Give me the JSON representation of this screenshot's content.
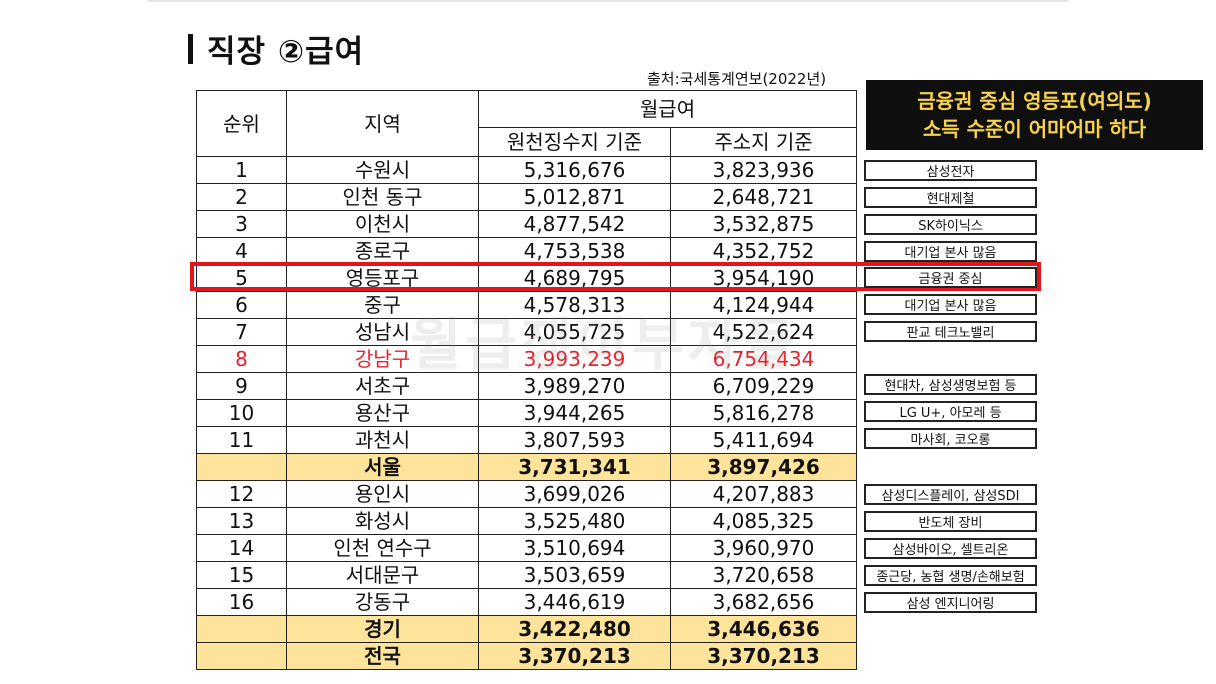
{
  "title": "직장 ②급여",
  "source": "출처:국세통계연보(2022년)",
  "callout": {
    "line1": "금융권 중심 영등포(여의도)",
    "line2": "소득 수준이 어마어마 하다"
  },
  "watermark": "월급쟁이부자들",
  "colors": {
    "highlight_row": "#fde49a",
    "red_row": "#e4222e",
    "highlight_box": "#e4141c",
    "callout_text": "#f7d24a"
  },
  "table": {
    "headers": {
      "rank": "순위",
      "region": "지역",
      "pay": "월급여",
      "withholding": "원천징수지 기준",
      "residence": "주소지 기준"
    },
    "rows": [
      {
        "rank": "1",
        "region": "수원시",
        "withholding": "5,316,676",
        "residence": "3,823,936"
      },
      {
        "rank": "2",
        "region": "인천 동구",
        "withholding": "5,012,871",
        "residence": "2,648,721"
      },
      {
        "rank": "3",
        "region": "이천시",
        "withholding": "4,877,542",
        "residence": "3,532,875"
      },
      {
        "rank": "4",
        "region": "종로구",
        "withholding": "4,753,538",
        "residence": "4,352,752"
      },
      {
        "rank": "5",
        "region": "영등포구",
        "withholding": "4,689,795",
        "residence": "3,954,190"
      },
      {
        "rank": "6",
        "region": "중구",
        "withholding": "4,578,313",
        "residence": "4,124,944"
      },
      {
        "rank": "7",
        "region": "성남시",
        "withholding": "4,055,725",
        "residence": "4,522,624"
      },
      {
        "rank": "8",
        "region": "강남구",
        "withholding": "3,993,239",
        "residence": "6,754,434"
      },
      {
        "rank": "9",
        "region": "서초구",
        "withholding": "3,989,270",
        "residence": "6,709,229"
      },
      {
        "rank": "10",
        "region": "용산구",
        "withholding": "3,944,265",
        "residence": "5,816,278"
      },
      {
        "rank": "11",
        "region": "과천시",
        "withholding": "3,807,593",
        "residence": "5,411,694"
      },
      {
        "rank": "",
        "region": "서울",
        "withholding": "3,731,341",
        "residence": "3,897,426"
      },
      {
        "rank": "12",
        "region": "용인시",
        "withholding": "3,699,026",
        "residence": "4,207,883"
      },
      {
        "rank": "13",
        "region": "화성시",
        "withholding": "3,525,480",
        "residence": "4,085,325"
      },
      {
        "rank": "14",
        "region": "인천 연수구",
        "withholding": "3,510,694",
        "residence": "3,960,970"
      },
      {
        "rank": "15",
        "region": "서대문구",
        "withholding": "3,503,659",
        "residence": "3,720,658"
      },
      {
        "rank": "16",
        "region": "강동구",
        "withholding": "3,446,619",
        "residence": "3,682,656"
      },
      {
        "rank": "",
        "region": "경기",
        "withholding": "3,422,480",
        "residence": "3,446,636"
      },
      {
        "rank": "",
        "region": "전국",
        "withholding": "3,370,213",
        "residence": "3,370,213"
      }
    ]
  },
  "tags": [
    "삼성전자",
    "현대제철",
    "SK하이닉스",
    "대기업 본사 많음",
    "금융권 중심",
    "대기업 본사 많음",
    "판교 테크노밸리",
    "현대차, 삼성생명보험 등",
    "LG U+, 아모레 등",
    "마사회, 코오롱",
    "삼성디스플레이, 삼성SDI",
    "반도체 장비",
    "삼성바이오, 셀트리온",
    "종근당, 농협 생명/손해보험",
    "삼성 엔지니어링"
  ]
}
